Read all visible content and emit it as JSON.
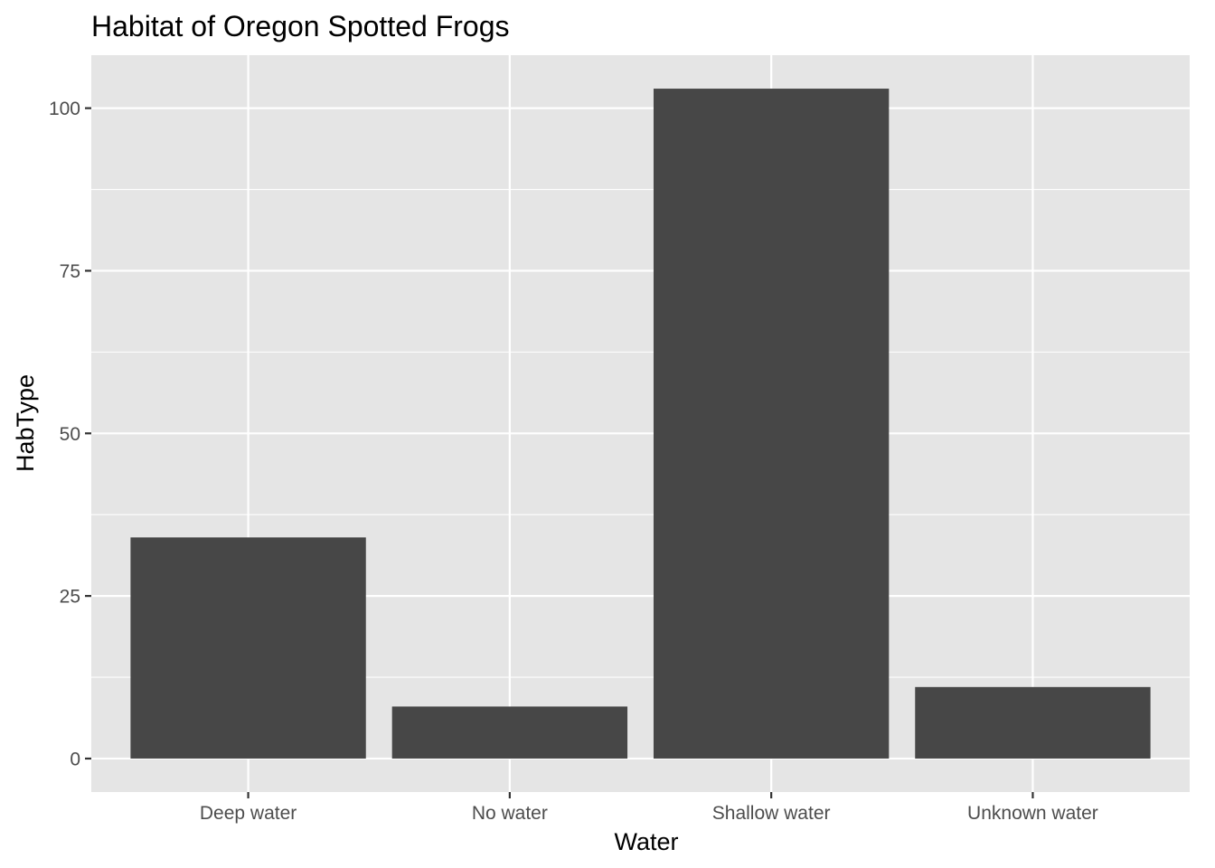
{
  "chart_data": {
    "type": "bar",
    "title": "Habitat of Oregon Spotted Frogs",
    "xlabel": "Water",
    "ylabel": "HabType",
    "categories": [
      "Deep water",
      "No water",
      "Shallow water",
      "Unknown water"
    ],
    "values": [
      34,
      8,
      103,
      11
    ],
    "ylim": [
      -5.15,
      108.15
    ],
    "yticks": [
      0,
      25,
      50,
      75,
      100
    ],
    "grid": true,
    "legend": "none",
    "colors": {
      "panel": "#e5e5e5",
      "grid": "#ffffff",
      "bar": "#474747",
      "tick": "#333333",
      "tick_label": "#4d4d4d"
    }
  }
}
